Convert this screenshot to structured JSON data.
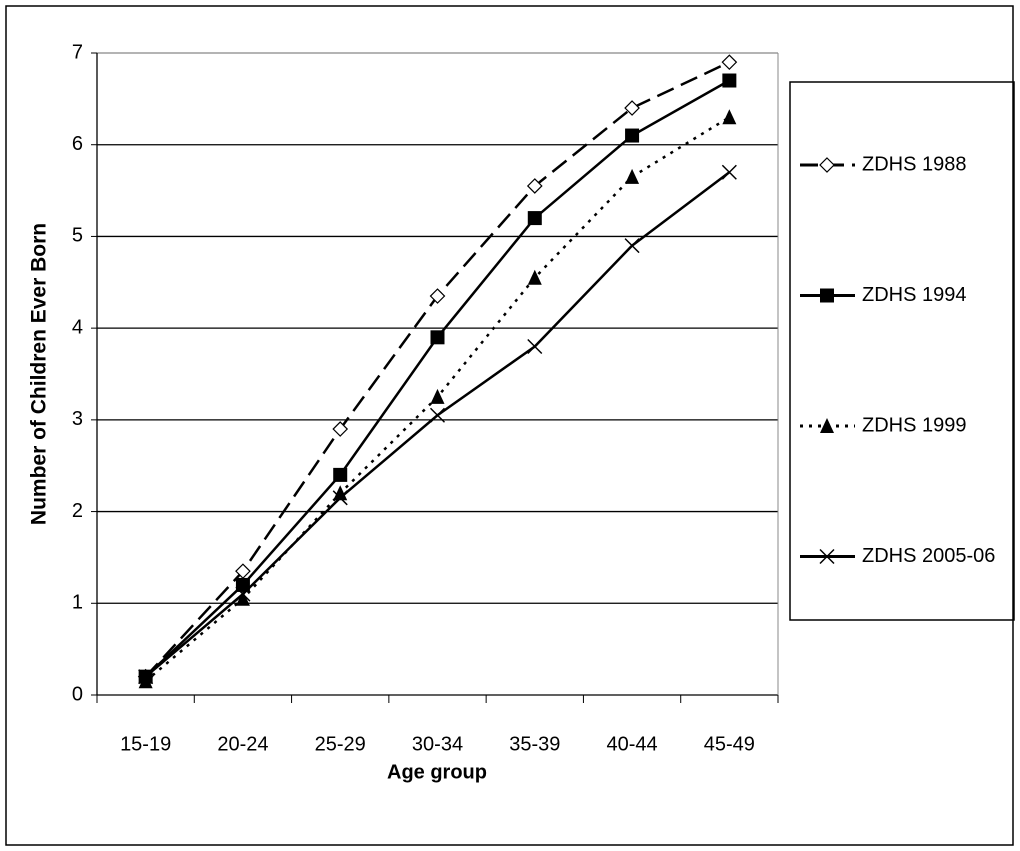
{
  "chart_data": {
    "type": "line",
    "categories": [
      "15-19",
      "20-24",
      "25-29",
      "30-34",
      "35-39",
      "40-44",
      "45-49"
    ],
    "x_label": "Age group",
    "y_label": "Number of Children Ever Born",
    "ylim": [
      0,
      7
    ],
    "yticks": [
      0,
      1,
      2,
      3,
      4,
      5,
      6,
      7
    ],
    "grid": true,
    "series": [
      {
        "name": "ZDHS 1988",
        "color": "#000000",
        "marker": "diamond",
        "dash": "18,8",
        "values": [
          0.2,
          1.35,
          2.9,
          4.35,
          5.55,
          6.4,
          6.9
        ]
      },
      {
        "name": "ZDHS 1994",
        "color": "#000000",
        "marker": "square",
        "dash": "none",
        "values": [
          0.2,
          1.2,
          2.4,
          3.9,
          5.2,
          6.1,
          6.7
        ]
      },
      {
        "name": "ZDHS 1999",
        "color": "#000000",
        "marker": "triangle",
        "dash": "3,6",
        "values": [
          0.15,
          1.05,
          2.2,
          3.25,
          4.55,
          5.65,
          6.3
        ]
      },
      {
        "name": "ZDHS 2005-06",
        "color": "#000000",
        "marker": "cross",
        "dash": "none",
        "values": [
          0.2,
          1.1,
          2.15,
          3.05,
          3.8,
          4.9,
          5.7
        ]
      }
    ]
  }
}
